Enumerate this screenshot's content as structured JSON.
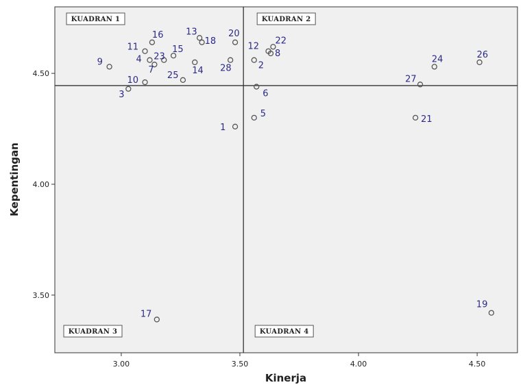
{
  "chart_data": {
    "type": "scatter",
    "xlabel": "Kinerja",
    "ylabel": "Kepentingan",
    "xlim": [
      2.72,
      4.67
    ],
    "ylim": [
      3.24,
      4.8
    ],
    "x_ticks": [
      "3.00",
      "3.50",
      "4.00",
      "4.50"
    ],
    "y_ticks": [
      "3.50",
      "4.00",
      "4.50"
    ],
    "x_tick_values": [
      3.0,
      3.5,
      4.0,
      4.5
    ],
    "y_tick_values": [
      3.5,
      4.0,
      4.5
    ],
    "reference_lines": {
      "x": 3.515,
      "y": 4.445
    },
    "quadrant_labels": [
      "KUADRAN 1",
      "KUADRAN 2",
      "KUADRAN 3",
      "KUADRAN 4"
    ],
    "grid": false,
    "marker_color": "#555555",
    "label_color": "#2b2a86",
    "plot_background": "#f0f0f0",
    "points": [
      {
        "label": "1",
        "x": 3.48,
        "y": 4.26
      },
      {
        "label": "2",
        "x": 3.56,
        "y": 4.56
      },
      {
        "label": "3",
        "x": 3.03,
        "y": 4.43
      },
      {
        "label": "4",
        "x": 3.12,
        "y": 4.56
      },
      {
        "label": "5",
        "x": 3.56,
        "y": 4.3
      },
      {
        "label": "6",
        "x": 3.57,
        "y": 4.44
      },
      {
        "label": "7",
        "x": 3.14,
        "y": 4.54
      },
      {
        "label": "8",
        "x": 3.63,
        "y": 4.59
      },
      {
        "label": "9",
        "x": 2.95,
        "y": 4.53
      },
      {
        "label": "10",
        "x": 3.1,
        "y": 4.46
      },
      {
        "label": "11",
        "x": 3.1,
        "y": 4.6
      },
      {
        "label": "12",
        "x": 3.62,
        "y": 4.6
      },
      {
        "label": "13",
        "x": 3.33,
        "y": 4.66
      },
      {
        "label": "14",
        "x": 3.31,
        "y": 4.55
      },
      {
        "label": "15",
        "x": 3.22,
        "y": 4.58
      },
      {
        "label": "16",
        "x": 3.13,
        "y": 4.64
      },
      {
        "label": "17",
        "x": 3.15,
        "y": 3.39
      },
      {
        "label": "18",
        "x": 3.34,
        "y": 4.64
      },
      {
        "label": "19",
        "x": 4.56,
        "y": 3.42
      },
      {
        "label": "20",
        "x": 3.48,
        "y": 4.64
      },
      {
        "label": "21",
        "x": 4.24,
        "y": 4.3
      },
      {
        "label": "22",
        "x": 3.64,
        "y": 4.62
      },
      {
        "label": "23",
        "x": 3.18,
        "y": 4.56
      },
      {
        "label": "24",
        "x": 4.32,
        "y": 4.53
      },
      {
        "label": "25",
        "x": 3.26,
        "y": 4.47
      },
      {
        "label": "26",
        "x": 4.51,
        "y": 4.55
      },
      {
        "label": "27",
        "x": 4.26,
        "y": 4.45
      },
      {
        "label": "28",
        "x": 3.46,
        "y": 4.56
      }
    ]
  }
}
